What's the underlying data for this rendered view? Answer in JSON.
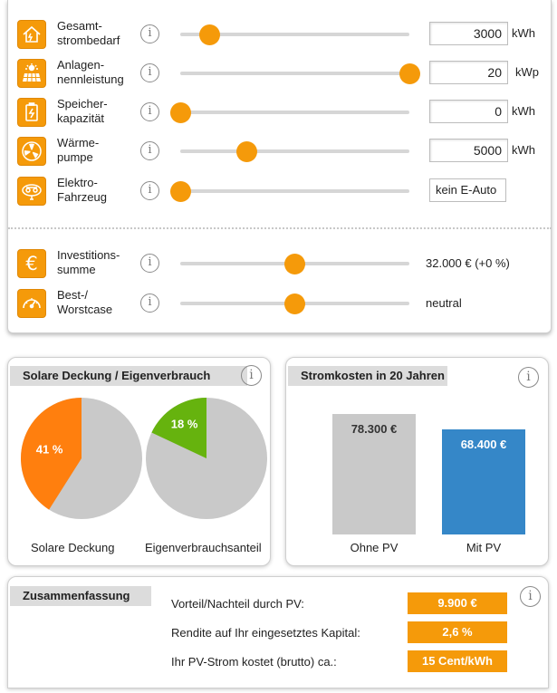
{
  "settings": {
    "rows": [
      {
        "label": "Gesamt-\nstrombedarf",
        "icon": "house-icon",
        "value": "3000",
        "unit": "kWh",
        "slider_fraction": 0.13
      },
      {
        "label": "Anlagen-\nnennleistung",
        "icon": "solar-panel-icon",
        "value": "20",
        "unit": "kWp",
        "slider_fraction": 1.0
      },
      {
        "label": "Speicher-\nkapazität",
        "icon": "battery-icon",
        "value": "0",
        "unit": "kWh",
        "slider_fraction": 0.0
      },
      {
        "label": "Wärme-\npumpe",
        "icon": "fan-icon",
        "value": "5000",
        "unit": "kWh",
        "slider_fraction": 0.29
      },
      {
        "label": "Elektro-\nFahrzeug",
        "icon": "car-icon",
        "value": "kein E-Auto",
        "unit": "",
        "slider_fraction": 0.0
      },
      {
        "label": "Investitions-\nsumme",
        "icon": "euro-icon",
        "value": "32.000 € (+0 %)",
        "unit": "",
        "slider_fraction": 0.5
      },
      {
        "label": "Best-/\nWorstcase",
        "icon": "gauge-icon",
        "value": "neutral",
        "unit": "",
        "slider_fraction": 0.5
      }
    ],
    "info_glyph": "i"
  },
  "solar": {
    "title": "Solare Deckung / Eigenverbrauch",
    "pies": [
      {
        "label": "Solare Deckung",
        "percent_label": "41 %",
        "value": 41,
        "color": "#ff7f0e"
      },
      {
        "label": "Eigenverbrauchsanteil",
        "percent_label": "18 %",
        "value": 18,
        "color": "#66b30e"
      }
    ],
    "rest_color": "#c9c9c9"
  },
  "costs": {
    "title": "Stromkosten in 20 Jahren",
    "chart_data": {
      "type": "bar",
      "categories": [
        "Ohne PV",
        "Mit PV"
      ],
      "values": [
        78300,
        68400
      ],
      "value_labels": [
        "78.300 €",
        "68.400 €"
      ],
      "colors": [
        "#c9c9c9",
        "#3587c8"
      ],
      "title": "Stromkosten in 20 Jahren"
    }
  },
  "summary": {
    "title": "Zusammenfassung",
    "rows": [
      {
        "label": "Vorteil/Nachteil durch PV:",
        "value": "9.900 €"
      },
      {
        "label": "Rendite auf Ihr eingesetztes Kapital:",
        "value": "2,6 %"
      },
      {
        "label": "Ihr PV-Strom kostet (brutto) ca.:",
        "value": "15 Cent/kWh"
      }
    ]
  },
  "colors": {
    "accent": "#f59a0a",
    "slider_track": "#d6d6d6",
    "panel_title_bg": "#dcdcdc"
  }
}
